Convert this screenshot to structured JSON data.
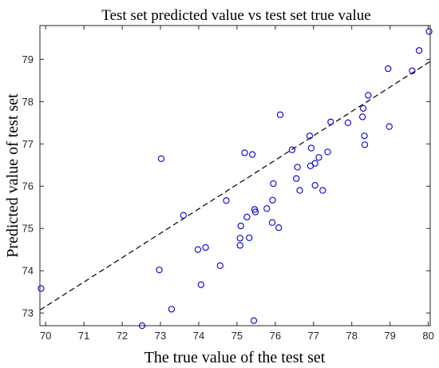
{
  "chart_data": {
    "type": "scatter",
    "title": "Test set predicted value vs test set true value",
    "xlabel": "The true value of the test set",
    "ylabel": "Predicted value of test set",
    "xlim": [
      69.85,
      80.05
    ],
    "ylim": [
      72.7,
      79.8
    ],
    "xticks": [
      70,
      71,
      72,
      73,
      74,
      75,
      76,
      77,
      78,
      79,
      80
    ],
    "yticks": [
      73,
      74,
      75,
      76,
      77,
      78,
      79
    ],
    "grid": false,
    "legend": "none",
    "series": [
      {
        "marker": "open-circle",
        "color": "#0000cc",
        "points": [
          [
            69.88,
            73.58
          ],
          [
            72.52,
            72.7
          ],
          [
            72.97,
            74.02
          ],
          [
            73.02,
            76.65
          ],
          [
            73.29,
            73.09
          ],
          [
            73.6,
            75.31
          ],
          [
            73.98,
            74.5
          ],
          [
            74.06,
            73.67
          ],
          [
            74.18,
            74.55
          ],
          [
            74.56,
            74.12
          ],
          [
            74.72,
            75.66
          ],
          [
            75.08,
            74.77
          ],
          [
            75.08,
            74.6
          ],
          [
            75.1,
            75.06
          ],
          [
            75.2,
            76.79
          ],
          [
            75.26,
            75.27
          ],
          [
            75.32,
            74.78
          ],
          [
            75.4,
            76.75
          ],
          [
            75.44,
            72.82
          ],
          [
            75.46,
            75.45
          ],
          [
            75.48,
            75.39
          ],
          [
            75.78,
            75.47
          ],
          [
            75.92,
            75.14
          ],
          [
            75.93,
            75.67
          ],
          [
            75.95,
            76.06
          ],
          [
            76.09,
            75.02
          ],
          [
            76.13,
            77.69
          ],
          [
            76.44,
            76.86
          ],
          [
            76.55,
            76.18
          ],
          [
            76.58,
            76.45
          ],
          [
            76.64,
            75.9
          ],
          [
            76.9,
            77.19
          ],
          [
            76.92,
            76.48
          ],
          [
            76.94,
            76.9
          ],
          [
            77.04,
            76.02
          ],
          [
            77.04,
            76.54
          ],
          [
            77.14,
            76.68
          ],
          [
            77.24,
            75.9
          ],
          [
            77.37,
            76.81
          ],
          [
            77.45,
            77.52
          ],
          [
            77.9,
            77.5
          ],
          [
            78.28,
            77.64
          ],
          [
            78.3,
            77.84
          ],
          [
            78.33,
            77.19
          ],
          [
            78.34,
            76.98
          ],
          [
            78.43,
            78.15
          ],
          [
            78.95,
            78.78
          ],
          [
            78.98,
            77.41
          ],
          [
            79.58,
            78.73
          ],
          [
            79.76,
            79.21
          ],
          [
            80.02,
            79.66
          ]
        ]
      }
    ],
    "fit_line": {
      "style": "dashed",
      "color": "#000000",
      "x": [
        69.85,
        80.05
      ],
      "y": [
        73.07,
        78.95
      ]
    }
  }
}
